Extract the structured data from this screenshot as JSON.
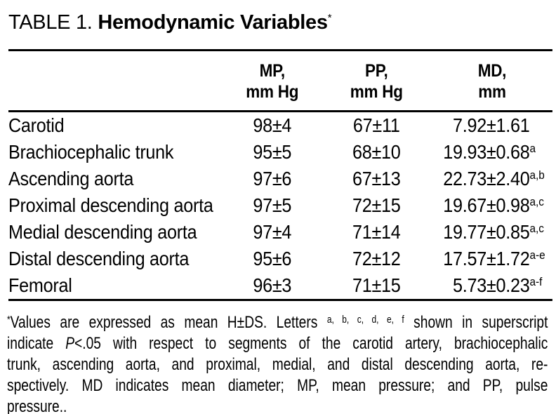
{
  "title": {
    "prefix": "TABLE 1. ",
    "main": "Hemodynamic Variables",
    "sup": "*"
  },
  "table": {
    "columns": [
      {
        "line1": "",
        "line2": ""
      },
      {
        "line1": "MP,",
        "line2": "mm Hg"
      },
      {
        "line1": "PP,",
        "line2": "mm Hg"
      },
      {
        "line1": "MD,",
        "line2": "mm"
      }
    ],
    "rows": [
      {
        "segment": "Carotid",
        "mp": "98±4",
        "pp": "67±11",
        "md": "7.92±1.61",
        "md_sup": ""
      },
      {
        "segment": "Brachiocephalic trunk",
        "mp": "95±5",
        "pp": "68±10",
        "md": "19.93±0.68",
        "md_sup": "a"
      },
      {
        "segment": "Ascending aorta",
        "mp": "97±6",
        "pp": "67±13",
        "md": "22.73±2.40",
        "md_sup": "a,b"
      },
      {
        "segment": "Proximal descending aorta",
        "mp": "97±5",
        "pp": "72±15",
        "md": "19.67±0.98",
        "md_sup": "a,c"
      },
      {
        "segment": "Medial descending aorta",
        "mp": "97±4",
        "pp": "71±14",
        "md": "19.77±0.85",
        "md_sup": "a,c"
      },
      {
        "segment": "Distal descending aorta",
        "mp": "95±6",
        "pp": "72±12",
        "md": "17.57±1.72",
        "md_sup": "a-e"
      },
      {
        "segment": "Femoral",
        "mp": "96±3",
        "pp": "71±15",
        "md": "5.73±0.23",
        "md_sup": "a-f"
      }
    ]
  },
  "footnote": {
    "lines": [
      {
        "justify": true,
        "segments": [
          {
            "text": "*",
            "sup": true
          },
          {
            "text": "Values are expressed as mean H±DS. Letters "
          },
          {
            "text": "a, b, c, d, e, f",
            "sup": true
          },
          {
            "text": " shown in superscript"
          }
        ]
      },
      {
        "justify": true,
        "segments": [
          {
            "text": "indicate "
          },
          {
            "text": "P",
            "italic": true
          },
          {
            "text": "<.05 with respect to segments of the carotid artery, brachiocephalic"
          }
        ]
      },
      {
        "justify": true,
        "segments": [
          {
            "text": "trunk, ascending aorta, and proximal, medial, and distal descending aorta, re-"
          }
        ]
      },
      {
        "justify": true,
        "segments": [
          {
            "text": "spectively. MD indicates mean diameter; MP, mean pressure; and PP, pulse"
          }
        ]
      },
      {
        "justify": false,
        "segments": [
          {
            "text": "pressure.."
          }
        ]
      }
    ]
  },
  "colors": {
    "text": "#000000",
    "background": "#ffffff",
    "rule": "#000000"
  }
}
